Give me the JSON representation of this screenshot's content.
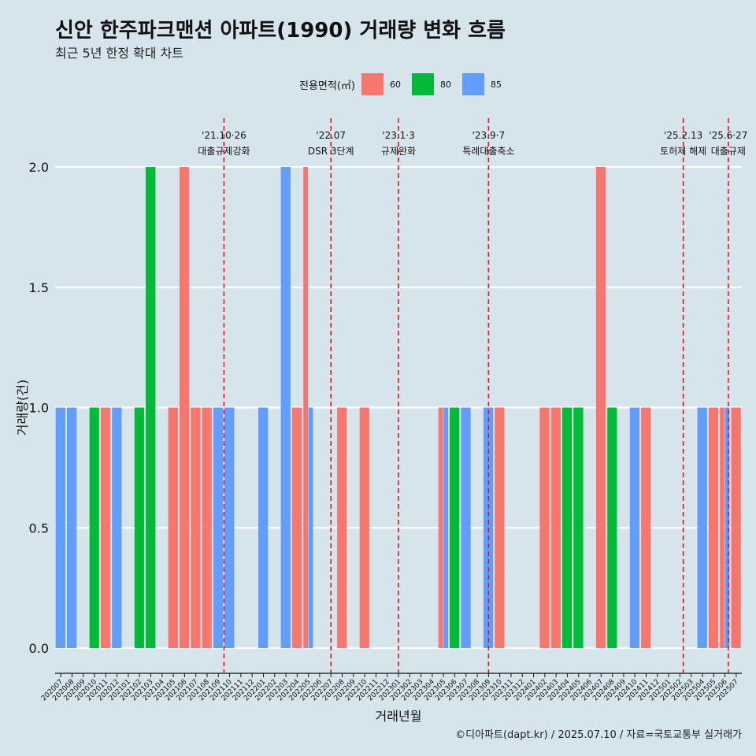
{
  "title": "신안 한주파크맨션 아파트(1990) 거래량 변화 흐름",
  "subtitle": "최근 5년 한정 확대 차트",
  "caption": "©디아파트(dapt.kr) / 2025.07.10 / 자료=국토교통부 실거래가",
  "legend": {
    "title": "전용면적(㎡)",
    "items": [
      {
        "label": "60",
        "color": "#F8766D"
      },
      {
        "label": "80",
        "color": "#00BA38"
      },
      {
        "label": "85",
        "color": "#619CFF"
      }
    ]
  },
  "chart_data": {
    "type": "bar",
    "xlabel": "거래년월",
    "ylabel": "거래량(건)",
    "ylim": [
      0,
      2
    ],
    "yticks": [
      "0.0",
      "0.5",
      "1.0",
      "1.5",
      "2.0"
    ],
    "grid": true,
    "legend_position": "top",
    "categories": [
      "202007",
      "202008",
      "202009",
      "202010",
      "202011",
      "202012",
      "202101",
      "202102",
      "202103",
      "202104",
      "202105",
      "202106",
      "202107",
      "202108",
      "202109",
      "202110",
      "202111",
      "202112",
      "202201",
      "202202",
      "202203",
      "202204",
      "202205",
      "202206",
      "202207",
      "202208",
      "202209",
      "202210",
      "202211",
      "202212",
      "202301",
      "202302",
      "202303",
      "202304",
      "202305",
      "202306",
      "202307",
      "202308",
      "202309",
      "202310",
      "202311",
      "202312",
      "202401",
      "202402",
      "202403",
      "202404",
      "202405",
      "202406",
      "202407",
      "202408",
      "202409",
      "202410",
      "202411",
      "202412",
      "202501",
      "202502",
      "202503",
      "202504",
      "202505",
      "202506",
      "202507"
    ],
    "series": [
      {
        "name": "60",
        "color": "#F8766D",
        "values": [
          0,
          0,
          0,
          0,
          1,
          0,
          0,
          0,
          0,
          0,
          1,
          2,
          1,
          1,
          0,
          0,
          0,
          0,
          0,
          0,
          0,
          1,
          2,
          0,
          0,
          1,
          0,
          1,
          0,
          0,
          0,
          0,
          0,
          0,
          1,
          0,
          0,
          0,
          0,
          1,
          0,
          0,
          0,
          1,
          1,
          0,
          0,
          0,
          2,
          0,
          0,
          0,
          1,
          0,
          0,
          0,
          0,
          0,
          1,
          1,
          1
        ]
      },
      {
        "name": "80",
        "color": "#00BA38",
        "values": [
          0,
          0,
          0,
          1,
          0,
          0,
          0,
          1,
          2,
          0,
          0,
          0,
          0,
          0,
          0,
          0,
          0,
          0,
          0,
          0,
          0,
          0,
          0,
          0,
          0,
          0,
          0,
          0,
          0,
          0,
          0,
          0,
          0,
          0,
          0,
          1,
          0,
          0,
          0,
          0,
          0,
          0,
          0,
          0,
          0,
          1,
          1,
          0,
          0,
          1,
          0,
          0,
          0,
          0,
          0,
          0,
          0,
          0,
          0,
          0,
          0
        ]
      },
      {
        "name": "85",
        "color": "#619CFF",
        "values": [
          1,
          1,
          0,
          0,
          0,
          1,
          0,
          0,
          0,
          0,
          0,
          0,
          0,
          0,
          1,
          1,
          0,
          0,
          1,
          0,
          2,
          0,
          1,
          0,
          0,
          0,
          0,
          0,
          0,
          0,
          0,
          0,
          0,
          0,
          1,
          0,
          1,
          0,
          1,
          0,
          0,
          0,
          0,
          0,
          0,
          0,
          0,
          0,
          0,
          0,
          0,
          1,
          0,
          0,
          0,
          0,
          0,
          1,
          0,
          1,
          0
        ]
      }
    ],
    "annotations": [
      {
        "at": "202110",
        "offset": -0.5,
        "date": "'21.10·26",
        "label": "대출규제강화"
      },
      {
        "at": "202207",
        "offset": 0,
        "date": "'22.07",
        "label": "DSR 3단계"
      },
      {
        "at": "202301",
        "offset": 0,
        "date": "'23.1·3",
        "label": "규제완화"
      },
      {
        "at": "202309",
        "offset": 0,
        "date": "'23.9·7",
        "label": "특례대출축소"
      },
      {
        "at": "202502",
        "offset": 0.3,
        "date": "'25.2.13",
        "label": "토허제 해제"
      },
      {
        "at": "202506",
        "offset": 0.3,
        "date": "'25.6·27",
        "label": "대출규제"
      }
    ]
  }
}
